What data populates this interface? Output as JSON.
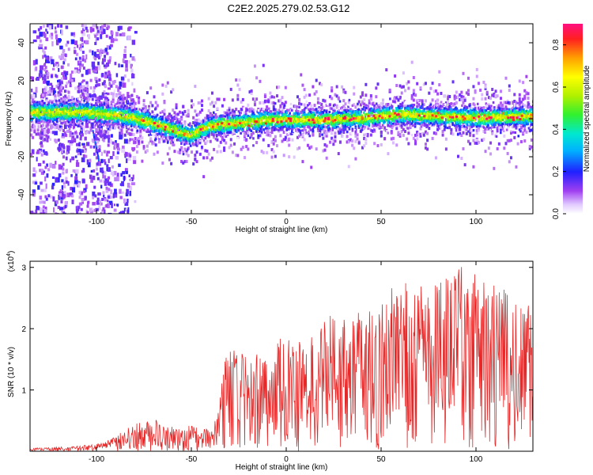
{
  "title": "C2E2.2025.279.02.53.G12",
  "chart_data": [
    {
      "type": "heatmap",
      "xlabel": "Height of straight line (km)",
      "ylabel": "Frequency (Hz)",
      "xlim": [
        -135,
        130
      ],
      "ylim": [
        -50,
        50
      ],
      "xticks": [
        -100,
        -50,
        0,
        50,
        100
      ],
      "yticks": [
        -40,
        -20,
        0,
        20,
        40
      ],
      "colorbar": {
        "label": "Normalized spectral amplitude",
        "range": [
          0,
          0.9
        ],
        "ticks": [
          0.0,
          0.2,
          0.4,
          0.6,
          0.8
        ],
        "tick_labels": [
          "0.0",
          "0.2",
          "0.4",
          "0.6",
          "0.8"
        ]
      },
      "ridge": {
        "x": [
          -135,
          -120,
          -105,
          -95,
          -80,
          -70,
          -60,
          -55,
          -50,
          -45,
          -40,
          -30,
          -20,
          -10,
          0,
          20,
          40,
          60,
          80,
          100,
          130
        ],
        "y": [
          4,
          4,
          4,
          3,
          1,
          -2,
          -5,
          -7,
          -8,
          -5,
          -3,
          -2,
          -1,
          0,
          0,
          0,
          1,
          3,
          2,
          1,
          2
        ]
      }
    },
    {
      "type": "line",
      "xlabel": "Height of straight line (km)",
      "ylabel": "SNR (10 * v/v)",
      "multiplier": "(x10",
      "multiplier_exp": "4",
      "multiplier_close": ")",
      "xlim": [
        -135,
        130
      ],
      "ylim": [
        0,
        3.1
      ],
      "xticks": [
        -100,
        -50,
        0,
        50,
        100
      ],
      "yticks": [
        1,
        2,
        3
      ],
      "color": "#e62828",
      "envelope": {
        "x": [
          -135,
          -110,
          -100,
          -90,
          -80,
          -70,
          -60,
          -50,
          -40,
          -36,
          -34,
          -30,
          -20,
          -10,
          0,
          10,
          20,
          30,
          40,
          50,
          60,
          70,
          80,
          90,
          100,
          110,
          120,
          130
        ],
        "y": [
          0.05,
          0.08,
          0.12,
          0.25,
          0.45,
          0.5,
          0.4,
          0.4,
          0.35,
          0.6,
          1.2,
          1.7,
          1.5,
          1.6,
          1.9,
          1.7,
          2.2,
          2.2,
          2.3,
          2.5,
          2.6,
          2.7,
          2.8,
          2.9,
          2.8,
          2.7,
          2.5,
          2.3
        ]
      }
    }
  ]
}
